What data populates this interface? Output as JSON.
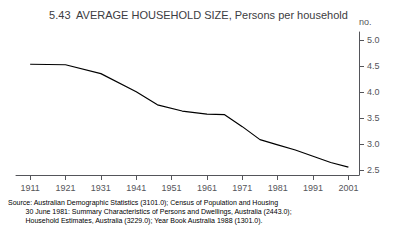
{
  "chart_data": {
    "type": "line",
    "title": "5.43  AVERAGE HOUSEHOLD SIZE, Persons per household",
    "ylabel": "no.",
    "x": [
      1911,
      1921,
      1931,
      1941,
      1947,
      1954,
      1961,
      1966,
      1971,
      1976,
      1981,
      1986,
      1991,
      1996,
      2001
    ],
    "values": [
      4.53,
      4.52,
      4.35,
      4.0,
      3.75,
      3.63,
      3.57,
      3.56,
      3.33,
      3.08,
      2.98,
      2.88,
      2.76,
      2.64,
      2.55
    ],
    "color": "#000000",
    "xlim": [
      1907,
      2004
    ],
    "xticks": [
      1911,
      1921,
      1931,
      1941,
      1951,
      1961,
      1971,
      1981,
      1991,
      2001
    ],
    "ylim": [
      2.4,
      5.15
    ],
    "yticks": [
      2.5,
      {
        "value": 3.0,
        "label": "3.0"
      },
      3.5,
      {
        "value": 4.0,
        "label": "4.0"
      },
      4.5,
      {
        "value": 5.0,
        "label": "5.0"
      }
    ],
    "grid": false,
    "annotations": [
      "Source: Australian Demographic Statistics (3101.0); Census of Population and Housing",
      "         30 June 1981: Summary Characteristics of Persons and Dwellings, Australia (2443.0);",
      "         Household Estimates, Australia (3229.0); Year Book Australia 1988 (1301.0)."
    ]
  }
}
